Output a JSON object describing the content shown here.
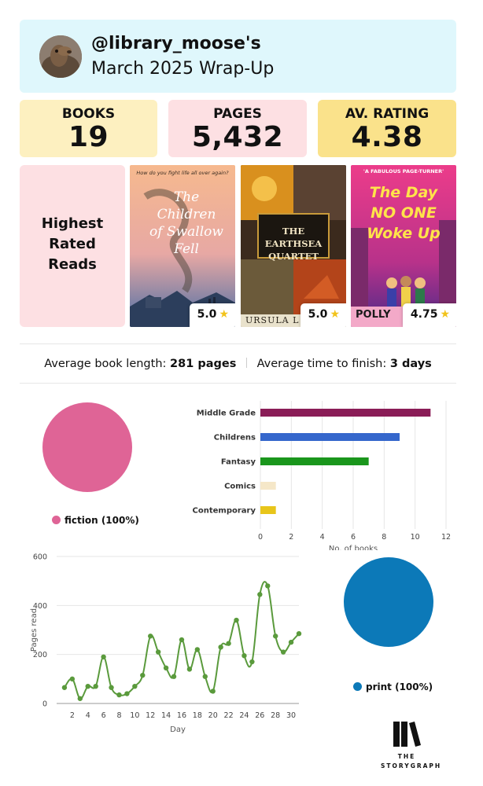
{
  "header": {
    "username": "@library_moose's",
    "title": "March 2025 Wrap-Up",
    "bg_color": "#dff7fc"
  },
  "stats": [
    {
      "label": "BOOKS",
      "value": "19",
      "bg": "#fdf0c0"
    },
    {
      "label": "PAGES",
      "value": "5,432",
      "bg": "#fde0e3"
    },
    {
      "label": "AV. RATING",
      "value": "4.38",
      "bg": "#fae28b"
    }
  ],
  "highest_rated": {
    "heading_lines": [
      "Highest",
      "Rated",
      "Reads"
    ],
    "books": [
      {
        "cover_title": "The Children of Swallow Fell",
        "cover_tagline": "How do you fight life all over again?",
        "rating": "5.0"
      },
      {
        "cover_title": "THE EARTHSEA QUARTET",
        "cover_author": "URSULA L",
        "rating": "5.0"
      },
      {
        "cover_title": "The Day NO ONE Woke Up",
        "cover_tagline": "'A FABULOUS PAGE-TURNER'",
        "cover_author": "POLLY",
        "rating": "4.75"
      }
    ]
  },
  "averages": {
    "length_label": "Average book length:",
    "length_value": "281 pages",
    "time_label": "Average time to finish:",
    "time_value": "3 days"
  },
  "fiction_pie": {
    "legend": "fiction (100%)",
    "color": "#df6496"
  },
  "format_pie": {
    "legend": "print (100%)",
    "color": "#0c79b8"
  },
  "chart_data": [
    {
      "type": "bar",
      "orientation": "horizontal",
      "categories": [
        "Middle Grade",
        "Childrens",
        "Fantasy",
        "Comics",
        "Contemporary"
      ],
      "values": [
        11,
        9,
        7,
        1,
        1
      ],
      "colors": [
        "#8a1d57",
        "#3567cc",
        "#1a961c",
        "#f5e7c8",
        "#e8c51a"
      ],
      "xlabel": "No. of books",
      "xlim": [
        0,
        12
      ],
      "xticks": [
        0,
        2,
        4,
        6,
        8,
        10,
        12
      ],
      "grid": true
    },
    {
      "type": "line",
      "xlabel": "Day",
      "ylabel": "Pages read",
      "x": [
        1,
        2,
        3,
        4,
        5,
        6,
        7,
        8,
        9,
        10,
        11,
        12,
        13,
        14,
        15,
        16,
        17,
        18,
        19,
        20,
        21,
        22,
        23,
        24,
        25,
        26,
        27,
        28,
        29,
        30,
        31
      ],
      "values": [
        65,
        100,
        20,
        70,
        70,
        190,
        65,
        35,
        40,
        70,
        115,
        275,
        210,
        145,
        110,
        260,
        140,
        220,
        110,
        50,
        230,
        245,
        340,
        195,
        170,
        445,
        480,
        275,
        210,
        250,
        285
      ],
      "xlim": [
        0,
        31
      ],
      "xticks": [
        2,
        4,
        6,
        8,
        10,
        12,
        14,
        16,
        18,
        20,
        22,
        24,
        26,
        28,
        30
      ],
      "ylim": [
        0,
        600
      ],
      "yticks": [
        0,
        200,
        400,
        600
      ],
      "color": "#5a9a3c",
      "grid": true
    }
  ],
  "branding": {
    "line1": "THE",
    "line2": "STORYGRAPH"
  }
}
